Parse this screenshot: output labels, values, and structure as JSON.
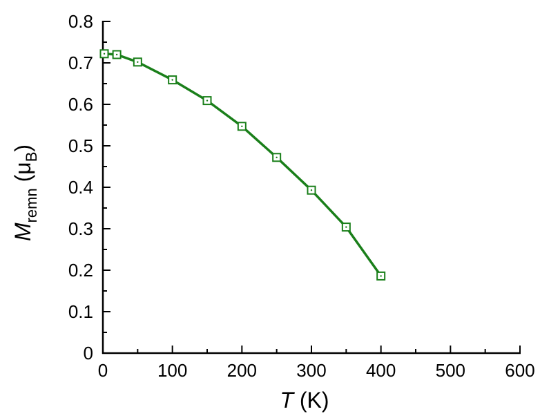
{
  "chart_data": {
    "type": "line",
    "title": "",
    "xlabel": {
      "italic": "T",
      "rest": " (K)"
    },
    "ylabel": {
      "italic": "M",
      "sub": "remn",
      "mid": " (μ",
      "sub2": "B",
      "end": ")"
    },
    "xlim": [
      0,
      600
    ],
    "ylim": [
      0,
      0.8
    ],
    "xticks": [
      0,
      100,
      200,
      300,
      400,
      500,
      600
    ],
    "yticks": [
      0,
      0.1,
      0.2,
      0.3,
      0.4,
      0.5,
      0.6,
      0.7,
      0.8
    ],
    "xtick_labels": [
      "0",
      "100",
      "200",
      "300",
      "400",
      "500",
      "600"
    ],
    "ytick_labels": [
      "0",
      "0.1",
      "0.2",
      "0.3",
      "0.4",
      "0.5",
      "0.6",
      "0.7",
      "0.8"
    ],
    "grid": false,
    "marker": "open-square",
    "color": "#1a7f1a",
    "series": [
      {
        "x": [
          2,
          20,
          50,
          100,
          150,
          200,
          250,
          300,
          350,
          400
        ],
        "y": [
          0.722,
          0.72,
          0.702,
          0.659,
          0.609,
          0.547,
          0.472,
          0.393,
          0.304,
          0.186
        ]
      }
    ]
  }
}
